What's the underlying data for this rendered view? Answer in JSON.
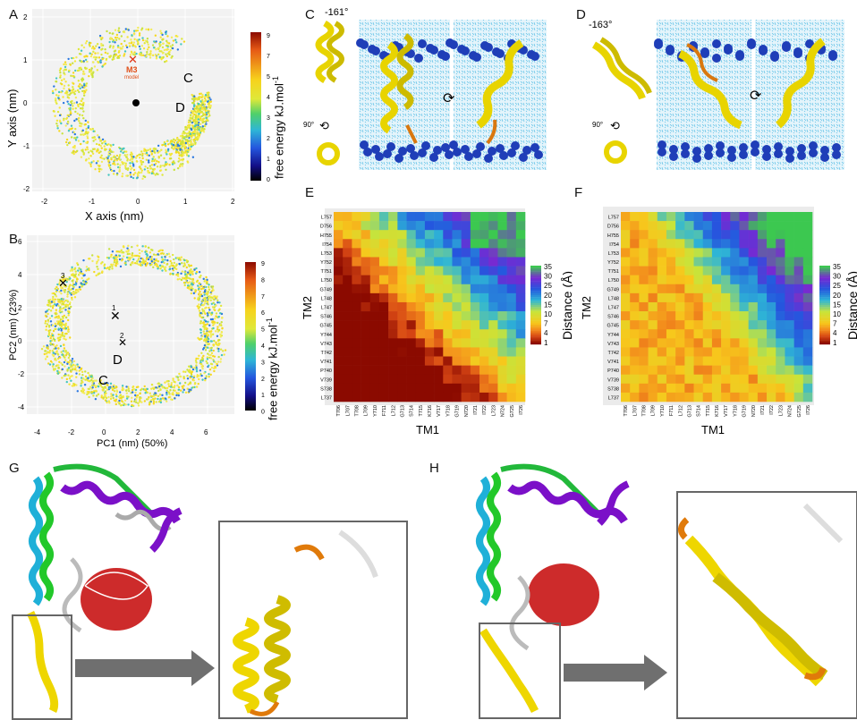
{
  "panels": {
    "A": {
      "label": "A",
      "xlabel": "X axis (nm)",
      "ylabel": "Y axis (nm)",
      "cb_label": "free energy kJ.mol",
      "cb_sup": "-1",
      "cb_ticks": [
        "9",
        "7",
        "5",
        "4",
        "3",
        "2",
        "1",
        "0"
      ],
      "xticks": [
        "-2",
        "-1",
        "0",
        "1",
        "2"
      ],
      "yticks": [
        "2",
        "1",
        "0",
        "-1",
        "-2"
      ],
      "mark_m3": "M3",
      "mark_m3_sub": "model",
      "mark_c": "C",
      "mark_d": "D"
    },
    "B": {
      "label": "B",
      "xlabel": "PC1 (nm) (50%)",
      "ylabel": "PC2 (nm) (23%)",
      "cb_label": "free energy kJ.mol",
      "cb_sup": "-1",
      "cb_ticks": [
        "9",
        "8",
        "7",
        "6",
        "5",
        "4",
        "3",
        "2",
        "1",
        "0"
      ],
      "xticks": [
        "-4",
        "-2",
        "0",
        "2",
        "4",
        "6"
      ],
      "yticks": [
        "6",
        "4",
        "2",
        "0",
        "-2",
        "-4"
      ],
      "mark1": "1",
      "mark2": "2",
      "mark3": "3",
      "mark_c": "C",
      "mark_d": "D"
    },
    "C": {
      "label": "C",
      "angle": "-161°",
      "rot": "90°"
    },
    "D": {
      "label": "D",
      "angle": "-163°",
      "rot": "90°"
    },
    "E": {
      "label": "E",
      "xlabel": "TM1",
      "ylabel": "TM2",
      "cb_label": "Distance (Å)",
      "cb_ticks": [
        "35",
        "30",
        "25",
        "20",
        "15",
        "10",
        "7",
        "4",
        "1"
      ]
    },
    "F": {
      "label": "F",
      "xlabel": "TM1",
      "ylabel": "TM2",
      "cb_label": "Distance (Å)",
      "cb_ticks": [
        "35",
        "30",
        "25",
        "20",
        "15",
        "10",
        "7",
        "4",
        "1"
      ]
    },
    "G": {
      "label": "G"
    },
    "H": {
      "label": "H"
    }
  },
  "heatmap_rows": [
    "L757",
    "D756",
    "H755",
    "I754",
    "L753",
    "Y752",
    "T751",
    "L750",
    "G749",
    "L748",
    "L747",
    "S746",
    "G745",
    "Y744",
    "V743",
    "T742",
    "V741",
    "P740",
    "V739",
    "S738",
    "L737"
  ],
  "heatmap_cols": [
    "T706",
    "L707",
    "T708",
    "L709",
    "Y710",
    "F711",
    "L712",
    "G713",
    "S714",
    "T715",
    "K716",
    "V717",
    "Y718",
    "G719",
    "N720",
    "I721",
    "I722",
    "L723",
    "N724",
    "G725",
    "I726"
  ],
  "colors": {
    "cb": [
      "#8b0a00",
      "#d43a1a",
      "#f08a1c",
      "#f7c61c",
      "#f5e83a",
      "#cbe53a",
      "#5ad26a",
      "#2fb6d2",
      "#2b78e0",
      "#1c2ad8",
      "#10107a",
      "#000000"
    ]
  },
  "chart_data": [
    {
      "type": "scatter",
      "panel": "A",
      "xlabel": "X axis (nm)",
      "ylabel": "Y axis (nm)",
      "xlim": [
        -2.2,
        2.2
      ],
      "ylim": [
        -2.2,
        2.2
      ],
      "colorbar": "free energy kJ.mol-1",
      "colorbar_range": [
        0,
        9
      ]
    },
    {
      "type": "scatter",
      "panel": "B",
      "xlabel": "PC1 (nm) (50%)",
      "ylabel": "PC2 (nm) (23%)",
      "xlim": [
        -4.5,
        7
      ],
      "ylim": [
        -4.5,
        6.5
      ],
      "colorbar": "free energy kJ.mol-1",
      "colorbar_range": [
        0,
        9
      ],
      "points": [
        {
          "label": "1",
          "x": 0.3,
          "y": 1.5
        },
        {
          "label": "2",
          "x": 0.8,
          "y": 0.0
        },
        {
          "label": "3",
          "x": -2.6,
          "y": 3.5
        }
      ]
    },
    {
      "type": "heatmap",
      "panel": "E",
      "xlabel": "TM1",
      "ylabel": "TM2",
      "colorbar": "Distance (Å)",
      "range": [
        1,
        35
      ]
    },
    {
      "type": "heatmap",
      "panel": "F",
      "xlabel": "TM1",
      "ylabel": "TM2",
      "colorbar": "Distance (Å)",
      "range": [
        1,
        35
      ]
    }
  ]
}
